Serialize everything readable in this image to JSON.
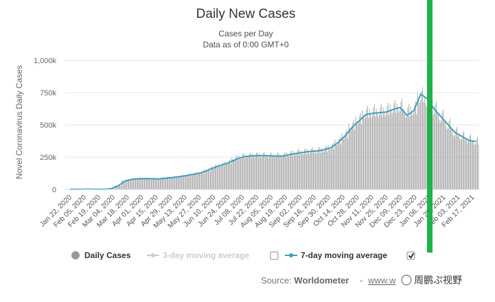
{
  "chart_data": {
    "type": "bar",
    "title": "Daily New Cases",
    "subtitle_line1": "Cases per Day",
    "subtitle_line2": "Data as of 0:00 GMT+0",
    "ylabel": "Novel Coronavirus Daily Cases",
    "xlabel": "",
    "ylim": [
      0,
      1000000
    ],
    "yticks": [
      0,
      250000,
      500000,
      750000,
      1000000
    ],
    "ytick_labels": [
      "0",
      "250k",
      "500k",
      "750k",
      "1,000k"
    ],
    "x_tick_labels": [
      "Jan 22, 2020",
      "Feb 05, 2020",
      "Feb 19, 2020",
      "Mar 04, 2020",
      "Mar 18, 2020",
      "Apr 01, 2020",
      "Apr 15, 2020",
      "Apr 29, 2020",
      "May 13, 2020",
      "May 27, 2020",
      "Jun 10, 2020",
      "Jun 24, 2020",
      "Jul 08, 2020",
      "Jul 22, 2020",
      "Aug 05, 2020",
      "Aug 19, 2020",
      "Sep 02, 2020",
      "Sep 16, 2020",
      "Sep 30, 2020",
      "Oct 14, 2020",
      "Oct 28, 2020",
      "Nov 11, 2020",
      "Nov 25, 2020",
      "Dec 09, 2020",
      "Dec 23, 2020",
      "Jan 06, 2021",
      "Jan 20, 2021",
      "Feb 03, 2021",
      "Feb 17, 2021"
    ],
    "series": [
      {
        "name": "Daily Cases",
        "kind": "bar",
        "color": "#999999",
        "weekly_values": [
          1000,
          2500,
          2000,
          3000,
          1500,
          2000,
          8000,
          30000,
          70000,
          80000,
          85000,
          85000,
          82000,
          82000,
          90000,
          95000,
          100000,
          110000,
          120000,
          130000,
          150000,
          175000,
          190000,
          210000,
          240000,
          255000,
          260000,
          265000,
          265000,
          262000,
          262000,
          262000,
          275000,
          285000,
          290000,
          298000,
          300000,
          310000,
          330000,
          370000,
          420000,
          490000,
          540000,
          590000,
          600000,
          605000,
          610000,
          630000,
          640000,
          600000,
          620000,
          720000,
          690000,
          620000,
          560000,
          500000,
          440000,
          410000,
          390000,
          370000
        ]
      },
      {
        "name": "7-day moving average",
        "kind": "line",
        "color": "#3a9fbf",
        "weekly_values": [
          800,
          1500,
          2200,
          2500,
          1800,
          1800,
          7000,
          28000,
          65000,
          78000,
          83000,
          84000,
          83000,
          82000,
          88000,
          93000,
          100000,
          108000,
          118000,
          128000,
          148000,
          170000,
          188000,
          205000,
          230000,
          250000,
          258000,
          262000,
          262000,
          260000,
          258000,
          258000,
          270000,
          280000,
          288000,
          295000,
          298000,
          308000,
          325000,
          365000,
          415000,
          480000,
          530000,
          580000,
          590000,
          595000,
          600000,
          620000,
          635000,
          575000,
          610000,
          740000,
          700000,
          620000,
          560000,
          500000,
          440000,
          410000,
          380000,
          370000
        ]
      }
    ],
    "legend": [
      {
        "label": "Daily Cases",
        "enabled": true
      },
      {
        "label": "3-day moving average",
        "enabled": false
      },
      {
        "label": "7-day moving average",
        "enabled": true
      }
    ],
    "legend_position": "bottom-center",
    "grid": true,
    "credits_prefix": "Source: ",
    "credits_source": "Worldometer",
    "credits_link": "www.w",
    "watermark": "周鹏ぷ视野"
  },
  "colors": {
    "bars": "#999999",
    "line": "#3a9fbf",
    "overlay": "#1db34a",
    "grid": "#e6e6e6",
    "axis": "#ccd6eb"
  },
  "icons": {
    "legend_checkbox": "checkbox-icon",
    "legend_marker": "circle-marker-icon"
  }
}
